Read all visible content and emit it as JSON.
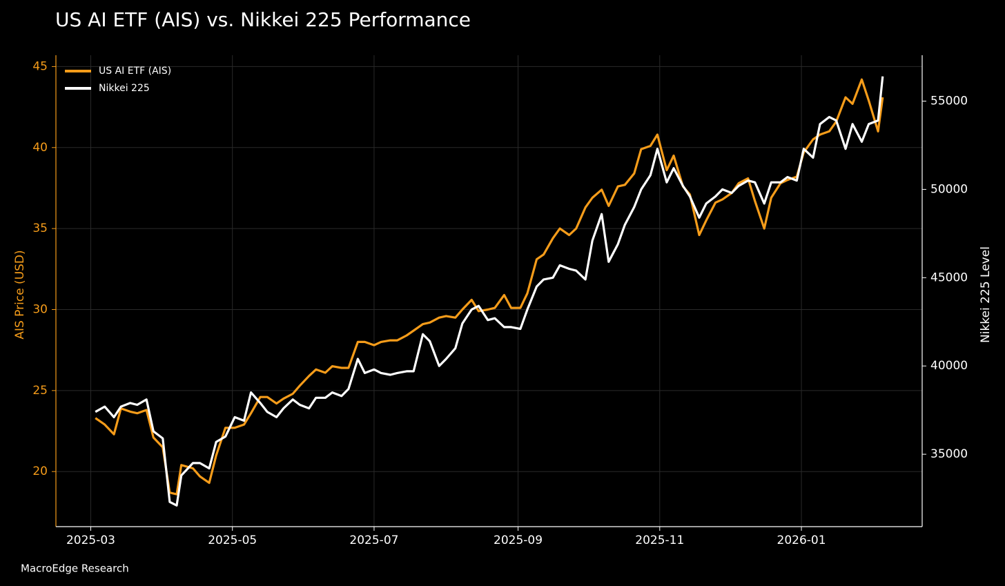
{
  "chart_data": {
    "type": "line",
    "title": "US AI ETF (AIS) vs. Nikkei 225 Performance",
    "source": "MacroEdge Research",
    "ylabel": "AIS Price (USD)",
    "y2label": "Nikkei 225 Level",
    "grid": true,
    "legend": "upper left",
    "xlim": [
      "2025-02-14",
      "2026-02-22"
    ],
    "xticks": [
      {
        "value": "2025-03-01",
        "label": "2025-03"
      },
      {
        "value": "2025-05-01",
        "label": "2025-05"
      },
      {
        "value": "2025-07-01",
        "label": "2025-07"
      },
      {
        "value": "2025-09-01",
        "label": "2025-09"
      },
      {
        "value": "2025-11-01",
        "label": "2025-11"
      },
      {
        "value": "2026-01-01",
        "label": "2026-01"
      }
    ],
    "ylim": [
      16.6,
      45.7
    ],
    "yticks": [
      20,
      25,
      30,
      35,
      40,
      45
    ],
    "y2lim": [
      30900,
      57600
    ],
    "y2ticks": [
      35000,
      40000,
      45000,
      50000,
      55000
    ],
    "x": [
      "2025-03-03",
      "2025-03-07",
      "2025-03-11",
      "2025-03-14",
      "2025-03-18",
      "2025-03-21",
      "2025-03-25",
      "2025-03-28",
      "2025-04-01",
      "2025-04-04",
      "2025-04-07",
      "2025-04-09",
      "2025-04-14",
      "2025-04-17",
      "2025-04-21",
      "2025-04-24",
      "2025-04-28",
      "2025-05-02",
      "2025-05-06",
      "2025-05-09",
      "2025-05-13",
      "2025-05-16",
      "2025-05-20",
      "2025-05-23",
      "2025-05-27",
      "2025-05-30",
      "2025-06-03",
      "2025-06-06",
      "2025-06-10",
      "2025-06-13",
      "2025-06-17",
      "2025-06-20",
      "2025-06-24",
      "2025-06-27",
      "2025-07-01",
      "2025-07-04",
      "2025-07-08",
      "2025-07-11",
      "2025-07-15",
      "2025-07-18",
      "2025-07-22",
      "2025-07-25",
      "2025-07-29",
      "2025-08-01",
      "2025-08-05",
      "2025-08-08",
      "2025-08-12",
      "2025-08-15",
      "2025-08-19",
      "2025-08-22",
      "2025-08-26",
      "2025-08-29",
      "2025-09-02",
      "2025-09-05",
      "2025-09-09",
      "2025-09-12",
      "2025-09-16",
      "2025-09-19",
      "2025-09-23",
      "2025-09-26",
      "2025-09-30",
      "2025-10-03",
      "2025-10-07",
      "2025-10-10",
      "2025-10-14",
      "2025-10-17",
      "2025-10-21",
      "2025-10-24",
      "2025-10-28",
      "2025-10-31",
      "2025-11-04",
      "2025-11-07",
      "2025-11-11",
      "2025-11-14",
      "2025-11-18",
      "2025-11-21",
      "2025-11-25",
      "2025-11-28",
      "2025-12-02",
      "2025-12-05",
      "2025-12-09",
      "2025-12-12",
      "2025-12-16",
      "2025-12-19",
      "2025-12-23",
      "2025-12-26",
      "2025-12-30",
      "2026-01-02",
      "2026-01-06",
      "2026-01-09",
      "2026-01-13",
      "2026-01-16",
      "2026-01-20",
      "2026-01-23",
      "2026-01-27",
      "2026-01-30",
      "2026-02-03",
      "2026-02-05"
    ],
    "series": [
      {
        "name": "US AI ETF (AIS)",
        "color": "#f59c1a",
        "axis": "y",
        "values": [
          23.3,
          22.9,
          22.3,
          23.9,
          23.7,
          23.6,
          23.8,
          22.1,
          21.5,
          18.7,
          18.6,
          20.4,
          20.2,
          19.7,
          19.3,
          21.0,
          22.7,
          22.7,
          22.9,
          23.6,
          24.6,
          24.6,
          24.2,
          24.5,
          24.8,
          25.3,
          25.9,
          26.3,
          26.1,
          26.5,
          26.4,
          26.4,
          28.0,
          28.0,
          27.8,
          28.0,
          28.1,
          28.1,
          28.4,
          28.7,
          29.1,
          29.2,
          29.5,
          29.6,
          29.5,
          30.0,
          30.6,
          29.9,
          30.0,
          30.1,
          30.9,
          30.1,
          30.1,
          31.0,
          33.1,
          33.4,
          34.4,
          35.0,
          34.6,
          35.0,
          36.3,
          36.9,
          37.4,
          36.4,
          37.6,
          37.7,
          38.4,
          39.9,
          40.1,
          40.8,
          38.6,
          39.5,
          37.6,
          37.1,
          34.6,
          35.5,
          36.6,
          36.8,
          37.2,
          37.8,
          38.1,
          36.7,
          35.0,
          36.9,
          37.8,
          38.0,
          38.2,
          39.7,
          40.5,
          40.8,
          41.0,
          41.6,
          43.1,
          42.7,
          44.2,
          42.9,
          41.0,
          43.1
        ]
      },
      {
        "name": "Nikkei 225",
        "color": "#ffffff",
        "axis": "y2",
        "values": [
          37400,
          37700,
          37100,
          37700,
          37900,
          37800,
          38100,
          36300,
          35900,
          32300,
          32100,
          33800,
          34500,
          34500,
          34200,
          35700,
          36000,
          37100,
          36900,
          38500,
          37900,
          37400,
          37100,
          37600,
          38100,
          37800,
          37600,
          38200,
          38200,
          38500,
          38300,
          38700,
          40400,
          39600,
          39800,
          39600,
          39500,
          39600,
          39700,
          39700,
          41800,
          41400,
          40000,
          40400,
          41000,
          42400,
          43200,
          43400,
          42600,
          42700,
          42200,
          42200,
          42100,
          43200,
          44500,
          44900,
          45000,
          45700,
          45500,
          45400,
          44900,
          47100,
          48600,
          45900,
          46900,
          48000,
          49000,
          50000,
          50800,
          52300,
          50400,
          51200,
          50200,
          49600,
          48400,
          49200,
          49600,
          50000,
          49800,
          50200,
          50500,
          50400,
          49200,
          50400,
          50400,
          50700,
          50500,
          52300,
          51800,
          53700,
          54100,
          53900,
          52300,
          53700,
          52700,
          53700,
          53900,
          56400
        ]
      }
    ]
  }
}
